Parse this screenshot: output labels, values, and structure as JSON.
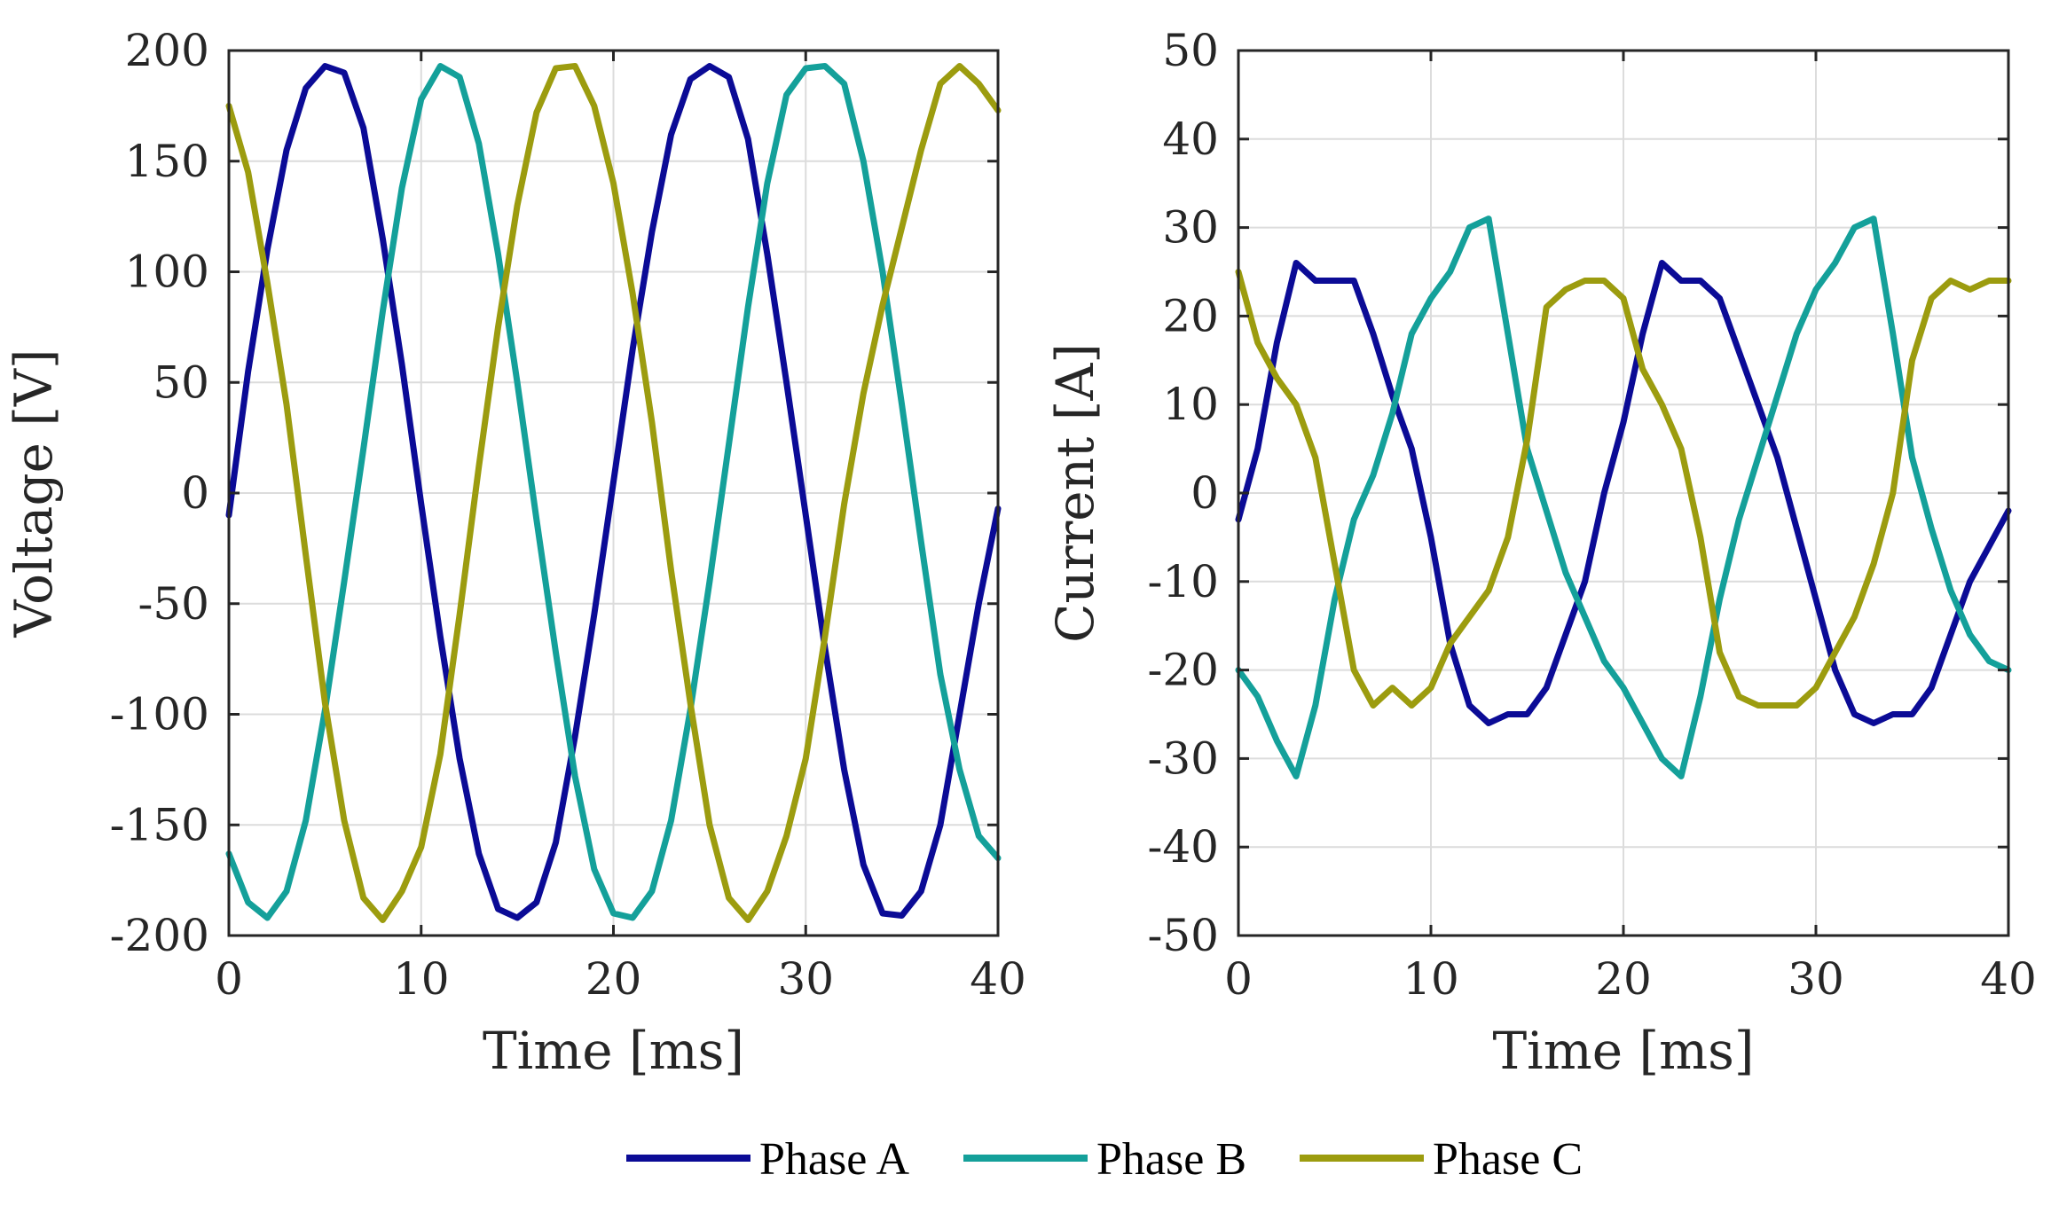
{
  "chart_data": [
    {
      "type": "line",
      "title": "",
      "xlabel": "Time [ms]",
      "ylabel": "Voltage [V]",
      "xlim": [
        0,
        40
      ],
      "ylim": [
        -200,
        200
      ],
      "xticks": [
        0,
        10,
        20,
        30,
        40
      ],
      "yticks": [
        -200,
        -150,
        -100,
        -50,
        0,
        50,
        100,
        150,
        200
      ],
      "grid": true,
      "series": [
        {
          "name": "Phase A",
          "color": "#0b0b96",
          "x": [
            0,
            1,
            2,
            3,
            4,
            5,
            6,
            7,
            8,
            9,
            10,
            11,
            12,
            13,
            14,
            15,
            16,
            17,
            18,
            19,
            20,
            21,
            22,
            23,
            24,
            25,
            26,
            27,
            28,
            29,
            30,
            31,
            32,
            33,
            34,
            35,
            36,
            37,
            38,
            39,
            40
          ],
          "y": [
            -10,
            55,
            110,
            155,
            183,
            193,
            190,
            165,
            115,
            58,
            -5,
            -65,
            -120,
            -163,
            -188,
            -192,
            -185,
            -158,
            -110,
            -55,
            5,
            65,
            118,
            162,
            187,
            193,
            188,
            160,
            108,
            50,
            -10,
            -70,
            -125,
            -168,
            -190,
            -191,
            -180,
            -150,
            -100,
            -50,
            -7
          ]
        },
        {
          "name": "Phase B",
          "color": "#14a09a",
          "x": [
            0,
            1,
            2,
            3,
            4,
            5,
            6,
            7,
            8,
            9,
            10,
            11,
            12,
            13,
            14,
            15,
            16,
            17,
            18,
            19,
            20,
            21,
            22,
            23,
            24,
            25,
            26,
            27,
            28,
            29,
            30,
            31,
            32,
            33,
            34,
            35,
            36,
            37,
            38,
            39,
            40
          ],
          "y": [
            -163,
            -185,
            -192,
            -180,
            -148,
            -98,
            -40,
            20,
            82,
            138,
            178,
            193,
            188,
            158,
            108,
            50,
            -12,
            -72,
            -128,
            -170,
            -190,
            -192,
            -180,
            -148,
            -98,
            -40,
            22,
            84,
            140,
            180,
            192,
            193,
            185,
            150,
            100,
            40,
            -22,
            -82,
            -125,
            -155,
            -165
          ]
        },
        {
          "name": "Phase C",
          "color": "#9c9c0f",
          "x": [
            0,
            1,
            2,
            3,
            4,
            5,
            6,
            7,
            8,
            9,
            10,
            11,
            12,
            13,
            14,
            15,
            16,
            17,
            18,
            19,
            20,
            21,
            22,
            23,
            24,
            25,
            26,
            27,
            28,
            29,
            30,
            31,
            32,
            33,
            34,
            35,
            36,
            37,
            38,
            39,
            40
          ],
          "y": [
            175,
            145,
            95,
            40,
            -28,
            -95,
            -148,
            -183,
            -193,
            -180,
            -160,
            -118,
            -55,
            12,
            75,
            130,
            172,
            192,
            193,
            175,
            140,
            90,
            32,
            -35,
            -95,
            -150,
            -183,
            -193,
            -180,
            -155,
            -120,
            -65,
            -5,
            45,
            85,
            120,
            155,
            185,
            193,
            185,
            173
          ]
        }
      ]
    },
    {
      "type": "line",
      "title": "",
      "xlabel": "Time [ms]",
      "ylabel": "Current [A]",
      "xlim": [
        0,
        40
      ],
      "ylim": [
        -50,
        50
      ],
      "xticks": [
        0,
        10,
        20,
        30,
        40
      ],
      "yticks": [
        -50,
        -40,
        -30,
        -20,
        -10,
        0,
        10,
        20,
        30,
        40,
        50
      ],
      "grid": true,
      "series": [
        {
          "name": "Phase A",
          "color": "#0b0b96",
          "x": [
            0,
            1,
            2,
            3,
            4,
            5,
            6,
            7,
            8,
            9,
            10,
            11,
            12,
            13,
            14,
            15,
            16,
            17,
            18,
            19,
            20,
            21,
            22,
            23,
            24,
            25,
            26,
            27,
            28,
            29,
            30,
            31,
            32,
            33,
            34,
            35,
            36,
            37,
            38,
            39,
            40
          ],
          "y": [
            -3,
            5,
            17,
            26,
            24,
            24,
            24,
            18,
            11,
            5,
            -5,
            -17,
            -24,
            -26,
            -25,
            -25,
            -22,
            -16,
            -10,
            0,
            8,
            18,
            26,
            24,
            24,
            22,
            16,
            10,
            4,
            -4,
            -12,
            -20,
            -25,
            -26,
            -25,
            -25,
            -22,
            -16,
            -10,
            -6,
            -2
          ]
        },
        {
          "name": "Phase B",
          "color": "#14a09a",
          "x": [
            0,
            1,
            2,
            3,
            4,
            5,
            6,
            7,
            8,
            9,
            10,
            11,
            12,
            13,
            14,
            15,
            16,
            17,
            18,
            19,
            20,
            21,
            22,
            23,
            24,
            25,
            26,
            27,
            28,
            29,
            30,
            31,
            32,
            33,
            34,
            35,
            36,
            37,
            38,
            39,
            40
          ],
          "y": [
            -20,
            -23,
            -28,
            -32,
            -24,
            -12,
            -3,
            2,
            9,
            18,
            22,
            25,
            30,
            31,
            18,
            5,
            -2,
            -9,
            -14,
            -19,
            -22,
            -26,
            -30,
            -32,
            -23,
            -12,
            -3,
            4,
            11,
            18,
            23,
            26,
            30,
            31,
            18,
            4,
            -4,
            -11,
            -16,
            -19,
            -20
          ]
        },
        {
          "name": "Phase C",
          "color": "#9c9c0f",
          "x": [
            0,
            1,
            2,
            3,
            4,
            5,
            6,
            7,
            8,
            9,
            10,
            11,
            12,
            13,
            14,
            15,
            16,
            17,
            18,
            19,
            20,
            21,
            22,
            23,
            24,
            25,
            26,
            27,
            28,
            29,
            30,
            31,
            32,
            33,
            34,
            35,
            36,
            37,
            38,
            39,
            40
          ],
          "y": [
            25,
            17,
            13,
            10,
            4,
            -8,
            -20,
            -24,
            -22,
            -24,
            -22,
            -17,
            -14,
            -11,
            -5,
            6,
            21,
            23,
            24,
            24,
            22,
            14,
            10,
            5,
            -5,
            -18,
            -23,
            -24,
            -24,
            -24,
            -22,
            -18,
            -14,
            -8,
            0,
            15,
            22,
            24,
            23,
            24,
            24
          ]
        }
      ]
    }
  ],
  "legend": {
    "position": "bottom-center",
    "entries": [
      {
        "label": "Phase A",
        "color": "#0b0b96"
      },
      {
        "label": "Phase B",
        "color": "#14a09a"
      },
      {
        "label": "Phase C",
        "color": "#9c9c0f"
      }
    ]
  }
}
